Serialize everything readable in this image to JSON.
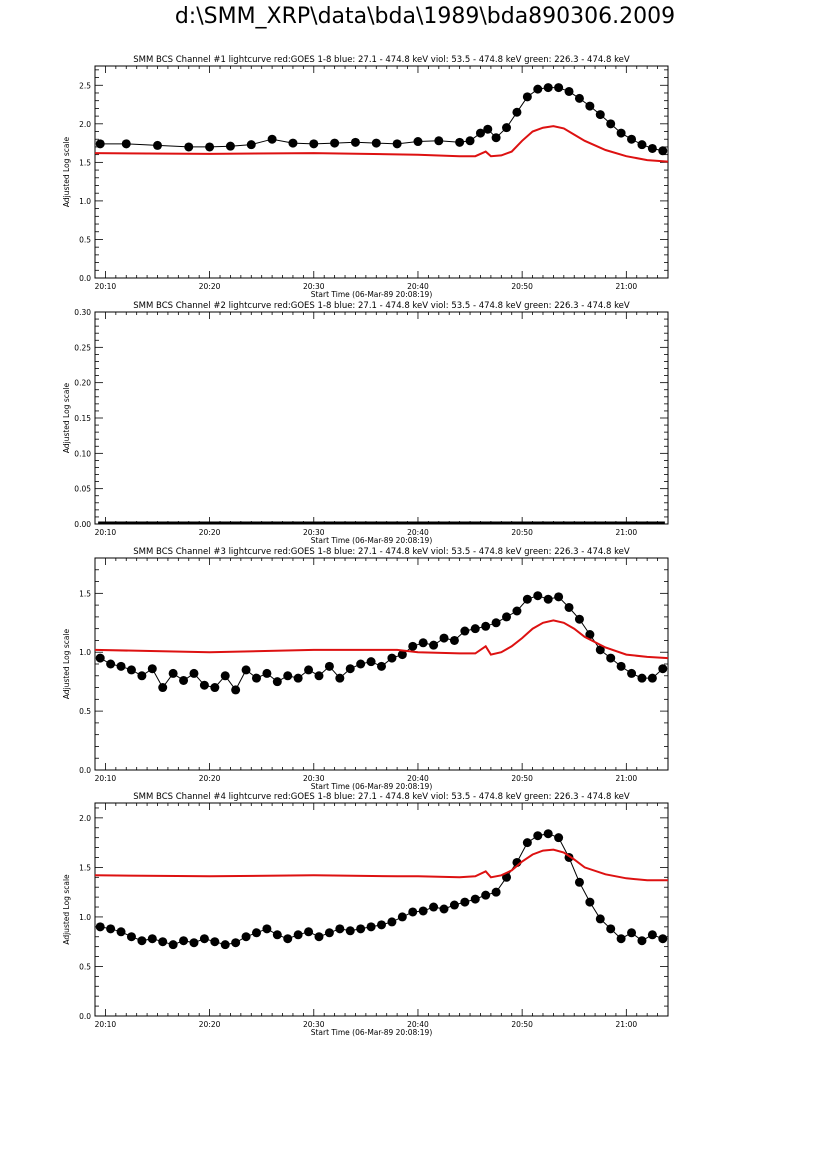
{
  "page_title": "d:\\SMM_XRP\\data\\bda\\1989\\bda890306.2009",
  "colors": {
    "data": "#000000",
    "goes": "#dd1111",
    "axes": "#000000"
  },
  "chart_data": [
    {
      "type": "scatter",
      "title": "SMM BCS Channel #1 lightcurve  red:GOES 1-8  blue: 27.1 - 474.8 keV  viol: 53.5 - 474.8 keV  green: 226.3 - 474.8 keV",
      "xlabel": "Start Time (06-Mar-89 20:08:19)",
      "ylabel": "Adjusted Log scale",
      "xlim": [
        9,
        64
      ],
      "ylim": [
        0,
        2.75
      ],
      "xticks": [
        10,
        20,
        30,
        40,
        50,
        60
      ],
      "xtick_labels": [
        "20:10",
        "20:20",
        "20:30",
        "20:40",
        "20:50",
        "21:00"
      ],
      "yticks": [
        0,
        0.5,
        1,
        1.5,
        2,
        2.5
      ],
      "ytick_labels": [
        "0.0",
        "0.5",
        "1.0",
        "1.5",
        "2.0",
        "2.5"
      ],
      "series": [
        {
          "kind": "points",
          "x": [
            9.5,
            12,
            15,
            18,
            20,
            22,
            24,
            26,
            28,
            30,
            32,
            34,
            36,
            38,
            40,
            42,
            44,
            45,
            46,
            46.7,
            47.5,
            48.5,
            49.5,
            50.5,
            51.5,
            52.5,
            53.5,
            54.5,
            55.5,
            56.5,
            57.5,
            58.5,
            59.5,
            60.5,
            61.5,
            62.5,
            63.5
          ],
          "y": [
            1.74,
            1.74,
            1.72,
            1.7,
            1.7,
            1.71,
            1.73,
            1.8,
            1.75,
            1.74,
            1.75,
            1.76,
            1.75,
            1.74,
            1.77,
            1.78,
            1.76,
            1.78,
            1.88,
            1.93,
            1.82,
            1.95,
            2.15,
            2.35,
            2.45,
            2.47,
            2.47,
            2.42,
            2.33,
            2.23,
            2.12,
            2.0,
            1.88,
            1.8,
            1.73,
            1.68,
            1.65
          ]
        },
        {
          "kind": "line",
          "x": [
            9,
            20,
            30,
            40,
            44,
            45.5,
            46.5,
            47,
            48,
            49,
            50,
            51,
            52,
            53,
            54,
            55,
            56,
            58,
            60,
            62,
            64
          ],
          "y": [
            1.62,
            1.61,
            1.62,
            1.6,
            1.58,
            1.58,
            1.64,
            1.58,
            1.59,
            1.64,
            1.78,
            1.9,
            1.95,
            1.97,
            1.94,
            1.86,
            1.78,
            1.66,
            1.58,
            1.53,
            1.51
          ]
        }
      ]
    },
    {
      "type": "scatter",
      "title": "SMM BCS Channel #2 lightcurve  red:GOES 1-8  blue: 27.1 - 474.8 keV  viol: 53.5 - 474.8 keV  green: 226.3 - 474.8 keV",
      "xlabel": "Start Time (06-Mar-89 20:08:19)",
      "ylabel": "Adjusted Log scale",
      "xlim": [
        9,
        64
      ],
      "ylim": [
        0,
        0.3
      ],
      "xticks": [
        10,
        20,
        30,
        40,
        50,
        60
      ],
      "xtick_labels": [
        "20:10",
        "20:20",
        "20:30",
        "20:40",
        "20:50",
        "21:00"
      ],
      "yticks": [
        0,
        0.05,
        0.1,
        0.15,
        0.2,
        0.25,
        0.3
      ],
      "ytick_labels": [
        "0.00",
        "0.05",
        "0.10",
        "0.15",
        "0.20",
        "0.25",
        "0.30"
      ],
      "series": [
        {
          "kind": "line-thick",
          "x": [
            9.3,
            63.7
          ],
          "y": [
            0,
            0
          ]
        }
      ]
    },
    {
      "type": "scatter",
      "title": "SMM BCS Channel #3 lightcurve  red:GOES 1-8  blue: 27.1 - 474.8 keV  viol: 53.5 - 474.8 keV  green: 226.3 - 474.8 keV",
      "xlabel": "Start Time (06-Mar-89 20:08:19)",
      "ylabel": "Adjusted Log scale",
      "xlim": [
        9,
        64
      ],
      "ylim": [
        0,
        1.8
      ],
      "xticks": [
        10,
        20,
        30,
        40,
        50,
        60
      ],
      "xtick_labels": [
        "20:10",
        "20:20",
        "20:30",
        "20:40",
        "20:50",
        "21:00"
      ],
      "yticks": [
        0,
        0.5,
        1,
        1.5
      ],
      "ytick_labels": [
        "0.0",
        "0.5",
        "1.0",
        "1.5"
      ],
      "series": [
        {
          "kind": "points",
          "x": [
            9.5,
            10.5,
            11.5,
            12.5,
            13.5,
            14.5,
            15.5,
            16.5,
            17.5,
            18.5,
            19.5,
            20.5,
            21.5,
            22.5,
            23.5,
            24.5,
            25.5,
            26.5,
            27.5,
            28.5,
            29.5,
            30.5,
            31.5,
            32.5,
            33.5,
            34.5,
            35.5,
            36.5,
            37.5,
            38.5,
            39.5,
            40.5,
            41.5,
            42.5,
            43.5,
            44.5,
            45.5,
            46.5,
            47.5,
            48.5,
            49.5,
            50.5,
            51.5,
            52.5,
            53.5,
            54.5,
            55.5,
            56.5,
            57.5,
            58.5,
            59.5,
            60.5,
            61.5,
            62.5,
            63.5
          ],
          "y": [
            0.95,
            0.9,
            0.88,
            0.85,
            0.8,
            0.86,
            0.7,
            0.82,
            0.76,
            0.82,
            0.72,
            0.7,
            0.8,
            0.68,
            0.85,
            0.78,
            0.82,
            0.75,
            0.8,
            0.78,
            0.85,
            0.8,
            0.88,
            0.78,
            0.86,
            0.9,
            0.92,
            0.88,
            0.95,
            0.98,
            1.05,
            1.08,
            1.06,
            1.12,
            1.1,
            1.18,
            1.2,
            1.22,
            1.25,
            1.3,
            1.35,
            1.45,
            1.48,
            1.45,
            1.47,
            1.38,
            1.28,
            1.15,
            1.02,
            0.95,
            0.88,
            0.82,
            0.78,
            0.78,
            0.86
          ]
        },
        {
          "kind": "line",
          "x": [
            9,
            20,
            30,
            38,
            40,
            44,
            45.5,
            46.5,
            47,
            48,
            49,
            50,
            51,
            52,
            53,
            54,
            55,
            56,
            58,
            60,
            62,
            64
          ],
          "y": [
            1.02,
            1.0,
            1.02,
            1.02,
            1.0,
            0.99,
            0.99,
            1.05,
            0.98,
            1.0,
            1.05,
            1.12,
            1.2,
            1.25,
            1.27,
            1.25,
            1.2,
            1.13,
            1.04,
            0.98,
            0.96,
            0.95
          ]
        }
      ]
    },
    {
      "type": "scatter",
      "title": "SMM BCS Channel #4 lightcurve  red:GOES 1-8  blue: 27.1 - 474.8 keV  viol: 53.5 - 474.8 keV  green: 226.3 - 474.8 keV",
      "xlabel": "Start Time (06-Mar-89 20:08:19)",
      "ylabel": "Adjusted Log scale",
      "xlim": [
        9,
        64
      ],
      "ylim": [
        0,
        2.15
      ],
      "xticks": [
        10,
        20,
        30,
        40,
        50,
        60
      ],
      "xtick_labels": [
        "20:10",
        "20:20",
        "20:30",
        "20:40",
        "20:50",
        "21:00"
      ],
      "yticks": [
        0,
        0.5,
        1,
        1.5,
        2
      ],
      "ytick_labels": [
        "0.0",
        "0.5",
        "1.0",
        "1.5",
        "2.0"
      ],
      "series": [
        {
          "kind": "points",
          "x": [
            9.5,
            10.5,
            11.5,
            12.5,
            13.5,
            14.5,
            15.5,
            16.5,
            17.5,
            18.5,
            19.5,
            20.5,
            21.5,
            22.5,
            23.5,
            24.5,
            25.5,
            26.5,
            27.5,
            28.5,
            29.5,
            30.5,
            31.5,
            32.5,
            33.5,
            34.5,
            35.5,
            36.5,
            37.5,
            38.5,
            39.5,
            40.5,
            41.5,
            42.5,
            43.5,
            44.5,
            45.5,
            46.5,
            47.5,
            48.5,
            49.5,
            50.5,
            51.5,
            52.5,
            53.5,
            54.5,
            55.5,
            56.5,
            57.5,
            58.5,
            59.5,
            60.5,
            61.5,
            62.5,
            63.5
          ],
          "y": [
            0.9,
            0.88,
            0.85,
            0.8,
            0.76,
            0.78,
            0.75,
            0.72,
            0.76,
            0.74,
            0.78,
            0.75,
            0.72,
            0.74,
            0.8,
            0.84,
            0.88,
            0.82,
            0.78,
            0.82,
            0.85,
            0.8,
            0.84,
            0.88,
            0.86,
            0.88,
            0.9,
            0.92,
            0.95,
            1.0,
            1.05,
            1.06,
            1.1,
            1.08,
            1.12,
            1.15,
            1.18,
            1.22,
            1.25,
            1.4,
            1.55,
            1.75,
            1.82,
            1.84,
            1.8,
            1.6,
            1.35,
            1.15,
            0.98,
            0.88,
            0.78,
            0.84,
            0.76,
            0.82,
            0.78
          ]
        },
        {
          "kind": "line",
          "x": [
            9,
            20,
            30,
            38,
            40,
            44,
            45.5,
            46.5,
            47,
            48,
            49,
            50,
            51,
            52,
            53,
            54,
            55,
            56,
            58,
            60,
            62,
            64
          ],
          "y": [
            1.42,
            1.41,
            1.42,
            1.41,
            1.41,
            1.4,
            1.41,
            1.46,
            1.4,
            1.42,
            1.47,
            1.56,
            1.63,
            1.67,
            1.68,
            1.65,
            1.58,
            1.5,
            1.43,
            1.39,
            1.37,
            1.37
          ]
        }
      ]
    }
  ]
}
